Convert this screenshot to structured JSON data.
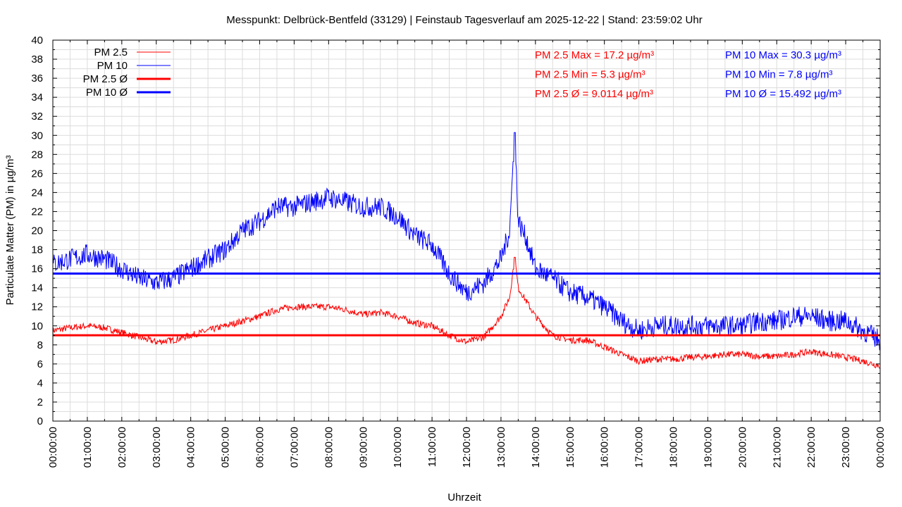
{
  "chart_data": {
    "type": "line",
    "title": "Messpunkt: Delbrück-Bentfeld (33129) | Feinstaub Tagesverlauf am 2025-12-22 | Stand: 23:59:02 Uhr",
    "xlabel": "Uhrzeit",
    "ylabel": "Particulate Matter (PM) in µg/m³",
    "ylim": [
      0,
      40
    ],
    "xlim_hours": [
      0,
      24
    ],
    "grid": true,
    "legend_position": "top-left",
    "y_ticks": [
      "0",
      "2",
      "4",
      "6",
      "8",
      "10",
      "12",
      "14",
      "16",
      "18",
      "20",
      "22",
      "24",
      "26",
      "28",
      "30",
      "32",
      "34",
      "36",
      "38",
      "40"
    ],
    "x_ticks": [
      "00:00:00",
      "01:00:00",
      "02:00:00",
      "03:00:00",
      "04:00:00",
      "05:00:00",
      "06:00:00",
      "07:00:00",
      "08:00:00",
      "09:00:00",
      "10:00:00",
      "11:00:00",
      "12:00:00",
      "13:00:00",
      "14:00:00",
      "15:00:00",
      "16:00:00",
      "17:00:00",
      "18:00:00",
      "19:00:00",
      "20:00:00",
      "21:00:00",
      "22:00:00",
      "23:00:00",
      "00:00:00"
    ],
    "series": [
      {
        "name": "PM 2.5",
        "color": "#ff0000",
        "style": "thin",
        "x": [
          0,
          0.5,
          1,
          1.5,
          2,
          2.5,
          3,
          3.5,
          4,
          4.5,
          5,
          5.5,
          6,
          6.5,
          7,
          7.5,
          8,
          8.5,
          9,
          9.5,
          10,
          10.5,
          11,
          11.5,
          12,
          12.5,
          13,
          13.25,
          13.4,
          13.5,
          13.75,
          14,
          14.5,
          15,
          15.5,
          16,
          16.5,
          17,
          17.5,
          18,
          18.5,
          19,
          19.5,
          20,
          20.5,
          21,
          21.5,
          22,
          22.5,
          23,
          23.5,
          24
        ],
        "y": [
          9.5,
          9.8,
          10,
          9.8,
          9.3,
          8.8,
          8.3,
          8.5,
          9,
          9.5,
          10,
          10.5,
          11,
          11.7,
          12,
          12,
          12,
          11.7,
          11.2,
          11.4,
          11,
          10.3,
          10,
          9,
          8.3,
          8.8,
          11,
          13,
          17.2,
          14,
          12.5,
          11,
          9,
          8.5,
          8.5,
          7.8,
          7,
          6.3,
          6.5,
          6.5,
          6.7,
          6.8,
          7,
          7,
          6.8,
          6.8,
          7,
          7.3,
          7,
          6.7,
          6.3,
          5.8
        ]
      },
      {
        "name": "PM 10",
        "color": "#0000ff",
        "style": "thin",
        "x": [
          0,
          0.5,
          1,
          1.5,
          2,
          2.5,
          3,
          3.5,
          4,
          4.5,
          5,
          5.5,
          6,
          6.5,
          7,
          7.5,
          8,
          8.5,
          9,
          9.5,
          10,
          10.5,
          11,
          11.5,
          12,
          12.5,
          13,
          13.25,
          13.4,
          13.5,
          13.75,
          14,
          14.5,
          15,
          15.5,
          16,
          16.5,
          17,
          17.5,
          18,
          18.5,
          19,
          19.5,
          20,
          20.5,
          21,
          21.5,
          22,
          22.5,
          23,
          23.5,
          24
        ],
        "y": [
          16.5,
          17,
          17.5,
          17,
          16,
          15,
          14.5,
          15,
          16,
          17,
          18,
          20,
          21,
          22.5,
          22.5,
          23,
          23.5,
          23,
          22.5,
          22.5,
          21.5,
          19.5,
          18.5,
          15.5,
          13.5,
          14.5,
          17,
          20,
          30.3,
          21,
          19,
          16,
          15,
          13.5,
          13,
          12,
          10.5,
          9.5,
          10,
          10,
          10,
          10,
          10,
          10,
          10.5,
          10.5,
          11,
          11,
          10.5,
          10.5,
          9.5,
          8.5
        ]
      },
      {
        "name": "PM 2.5 Ø",
        "color": "#ff0000",
        "style": "thick",
        "value": 9.0114
      },
      {
        "name": "PM 10 Ø",
        "color": "#0000ff",
        "style": "thick",
        "value": 15.492
      }
    ],
    "annotations": {
      "pm25": [
        "PM 2.5 Max = 17.2 µg/m³",
        "PM 2.5 Min = 5.3 µg/m³",
        "PM 2.5 Ø = 9.0114 µg/m³"
      ],
      "pm10": [
        "PM 10 Max = 30.3 µg/m³",
        "PM 10 Min = 7.8 µg/m³",
        "PM 10 Ø = 15.492 µg/m³"
      ]
    }
  }
}
